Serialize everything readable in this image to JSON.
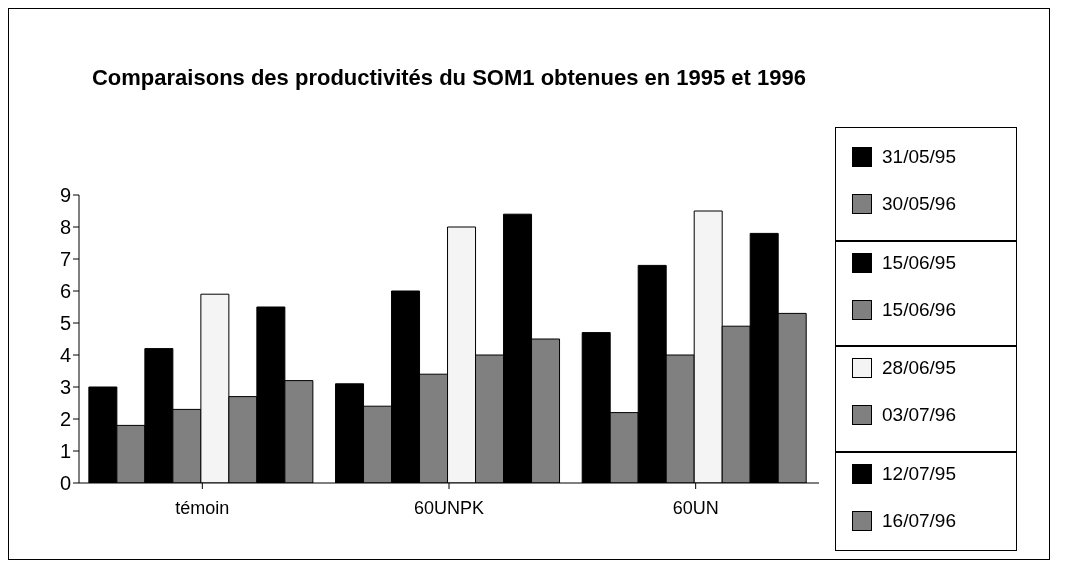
{
  "chart_data": {
    "type": "bar",
    "title": "Comparaisons des productivités du SOM1 obtenues en 1995 et 1996",
    "categories": [
      "témoin",
      "60UNPK",
      "60UN"
    ],
    "series": [
      {
        "name": "31/05/95",
        "color": "#000000",
        "values": [
          3.0,
          3.1,
          4.7
        ]
      },
      {
        "name": "30/05/96",
        "color": "#808080",
        "values": [
          1.8,
          2.4,
          2.2
        ]
      },
      {
        "name": "15/06/95",
        "color": "#000000",
        "values": [
          4.2,
          6.0,
          6.8
        ]
      },
      {
        "name": "15/06/96",
        "color": "#808080",
        "values": [
          2.3,
          3.4,
          4.0
        ]
      },
      {
        "name": "28/06/95",
        "color": "#f4f4f4",
        "values": [
          5.9,
          8.0,
          8.5
        ]
      },
      {
        "name": "03/07/96",
        "color": "#808080",
        "values": [
          2.7,
          4.0,
          4.9
        ]
      },
      {
        "name": "12/07/95",
        "color": "#000000",
        "values": [
          5.5,
          8.4,
          7.8
        ]
      },
      {
        "name": "16/07/96",
        "color": "#808080",
        "values": [
          3.2,
          4.5,
          5.3
        ]
      }
    ],
    "ylim": [
      0,
      9
    ],
    "yticks": [
      0,
      1,
      2,
      3,
      4,
      5,
      6,
      7,
      8,
      9
    ],
    "grid": false,
    "legend": "right"
  }
}
